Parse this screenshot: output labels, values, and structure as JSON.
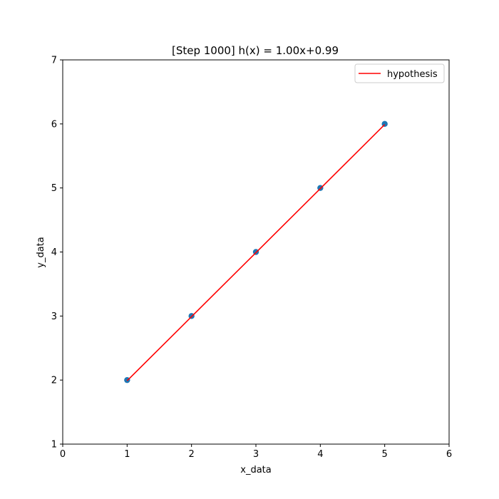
{
  "chart_data": {
    "type": "scatter",
    "title": "[Step 1000]  h(x) = 1.00x+0.99",
    "xlabel": "x_data",
    "ylabel": "y_data",
    "xlim": [
      0,
      6
    ],
    "ylim": [
      1,
      7
    ],
    "xticks": [
      "0",
      "1",
      "2",
      "3",
      "4",
      "5",
      "6"
    ],
    "yticks": [
      "1",
      "2",
      "3",
      "4",
      "5",
      "6",
      "7"
    ],
    "grid": false,
    "legend_position": "top-right",
    "series": [
      {
        "kind": "scatter",
        "color": "#1f77b4",
        "x": [
          1,
          2,
          3,
          4,
          5
        ],
        "y": [
          2,
          3,
          4,
          5,
          6
        ]
      },
      {
        "kind": "line",
        "name": "hypothesis",
        "color": "#ff0000",
        "x": [
          1,
          2,
          3,
          4,
          5
        ],
        "y": [
          1.99,
          2.99,
          3.99,
          4.99,
          5.99
        ]
      }
    ]
  }
}
